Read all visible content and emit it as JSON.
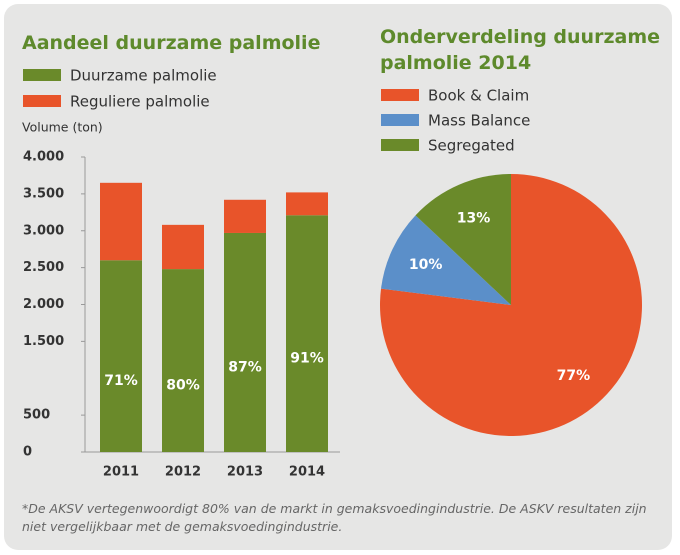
{
  "chart_data": [
    {
      "type": "bar",
      "stacked": true,
      "title": "Aandeel duurzame palmolie",
      "y_label": "Volume (ton)",
      "categories": [
        "2011",
        "2012",
        "2013",
        "2014"
      ],
      "series": [
        {
          "name": "Duurzame palmolie",
          "color": "#6a8a2a",
          "values": [
            2600,
            2480,
            2970,
            3210
          ]
        },
        {
          "name": "Reguliere palmolie",
          "color": "#e8542a",
          "values": [
            1050,
            600,
            450,
            310
          ]
        }
      ],
      "annotations": [
        "71%",
        "80%",
        "87%",
        "91%"
      ],
      "ylim": [
        0,
        4000
      ],
      "yticks": [
        {
          "value": 0,
          "label": "0"
        },
        {
          "value": 500,
          "label": "500"
        },
        {
          "value": 1500,
          "label": "1.500"
        },
        {
          "value": 2000,
          "label": "2.000"
        },
        {
          "value": 2500,
          "label": "2.500"
        },
        {
          "value": 3000,
          "label": "3.000"
        },
        {
          "value": 3500,
          "label": "3.500"
        },
        {
          "value": 4000,
          "label": "4.000"
        }
      ]
    },
    {
      "type": "pie",
      "title": "Onderverdeling duurzame palmolie 2014",
      "categories": [
        "Book & Claim",
        "Mass Balance",
        "Segregated"
      ],
      "values": [
        77,
        10,
        13
      ],
      "value_labels": [
        "77%",
        "10%",
        "13%"
      ],
      "colors": [
        "#e8542a",
        "#5b8fc9",
        "#6a8a2a"
      ]
    }
  ],
  "footnote": "*De AKSV vertegenwoordigt 80% van de markt in gemaksvoedingindustrie. De ASKV resultaten zijn niet vergelijkbaar met de gemaksvoedingindustrie."
}
